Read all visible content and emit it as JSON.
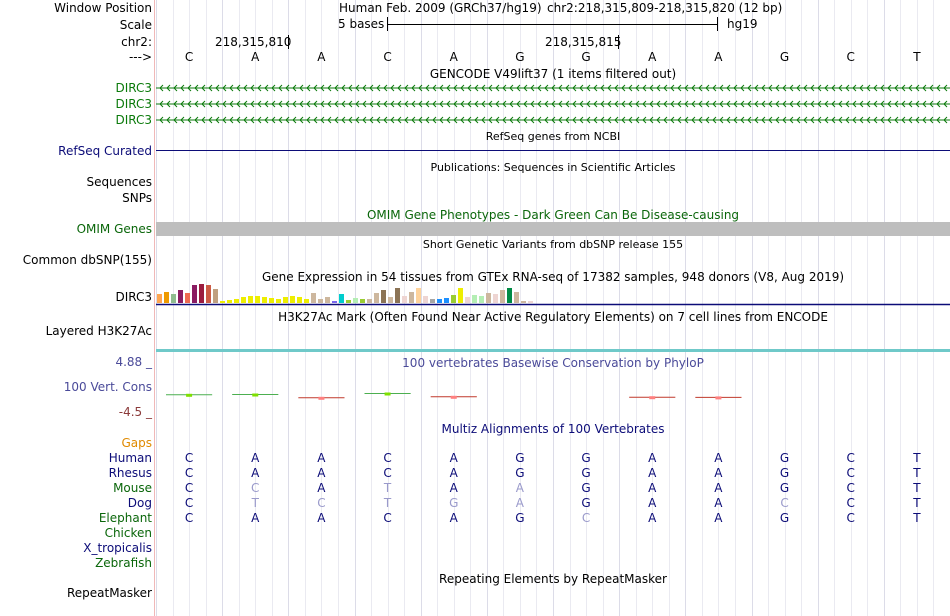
{
  "colors": {
    "gencode": "#0b7a0b",
    "refseq": "#0c0c78",
    "omim_label": "#0a660a",
    "omim_bar": "#bebebe",
    "phylop": "#4a4a99",
    "h3k27ac": "#6fc9c9",
    "gaps": "#e08a00",
    "guide": "#dcdce8"
  },
  "position": {
    "window_label": "Window Position",
    "assembly": "Human Feb. 2009 (GRCh37/hg19)",
    "range": "chr2:218,315,809-218,315,820 (12 bp)"
  },
  "scale": {
    "label": "Scale",
    "text": "5 bases",
    "db": "hg19"
  },
  "ruler": {
    "label": "chr2:",
    "tick1": "218,315,810",
    "tick2": "218,315,815"
  },
  "strand": {
    "label": "--->",
    "bases": [
      "C",
      "A",
      "A",
      "C",
      "A",
      "G",
      "G",
      "A",
      "A",
      "G",
      "C",
      "T"
    ]
  },
  "gencode": {
    "title": "GENCODE V49lift37 (1 items filtered out)",
    "rows": [
      "DIRC3",
      "DIRC3",
      "DIRC3"
    ]
  },
  "refseq": {
    "title": "RefSeq genes from NCBI",
    "label": "RefSeq Curated"
  },
  "publications": {
    "title": "Publications: Sequences in Scientific Articles",
    "labels": [
      "Sequences",
      "SNPs"
    ]
  },
  "omim": {
    "title": "OMIM Gene Phenotypes - Dark Green Can Be Disease-causing",
    "label": "OMIM Genes"
  },
  "dbsnp": {
    "title": "Short Genetic Variants from dbSNP release 155",
    "label": "Common dbSNP(155)"
  },
  "gtex": {
    "title": "Gene Expression in 54 tissues from GTEx RNA-seq of 17382 samples, 948 donors (V8, Aug 2019)",
    "label": "DIRC3",
    "bars": [
      {
        "v": 0.45,
        "c": "#ffa54f"
      },
      {
        "v": 0.55,
        "c": "#ee9a00"
      },
      {
        "v": 0.45,
        "c": "#8fbc8f"
      },
      {
        "v": 0.65,
        "c": "#8b1c62"
      },
      {
        "v": 0.5,
        "c": "#ee6a50"
      },
      {
        "v": 0.9,
        "c": "#8b1c62"
      },
      {
        "v": 0.95,
        "c": "#9c1c3f"
      },
      {
        "v": 0.9,
        "c": "#cd5b45"
      },
      {
        "v": 0.7,
        "c": "#c0a080"
      },
      {
        "v": 0.12,
        "c": "#eeee00"
      },
      {
        "v": 0.15,
        "c": "#eeee00"
      },
      {
        "v": 0.2,
        "c": "#eeee00"
      },
      {
        "v": 0.3,
        "c": "#eeee00"
      },
      {
        "v": 0.35,
        "c": "#eeee00"
      },
      {
        "v": 0.35,
        "c": "#eeee00"
      },
      {
        "v": 0.3,
        "c": "#eeee00"
      },
      {
        "v": 0.25,
        "c": "#eeee00"
      },
      {
        "v": 0.2,
        "c": "#eeee00"
      },
      {
        "v": 0.3,
        "c": "#eeee00"
      },
      {
        "v": 0.35,
        "c": "#eeee00"
      },
      {
        "v": 0.28,
        "c": "#eeee00"
      },
      {
        "v": 0.2,
        "c": "#eeee00"
      },
      {
        "v": 0.5,
        "c": "#cdb79e"
      },
      {
        "v": 0.2,
        "c": "#cdb79e"
      },
      {
        "v": 0.3,
        "c": "#cdb79e"
      },
      {
        "v": 0.12,
        "c": "#7a67ee"
      },
      {
        "v": 0.45,
        "c": "#00cdcd"
      },
      {
        "v": 0.15,
        "c": "#9acd32"
      },
      {
        "v": 0.25,
        "c": "#b4eeb4"
      },
      {
        "v": 0.18,
        "c": "#9acd32"
      },
      {
        "v": 0.2,
        "c": "#cdb79e"
      },
      {
        "v": 0.5,
        "c": "#cdb79e"
      },
      {
        "v": 0.65,
        "c": "#8b7355"
      },
      {
        "v": 0.3,
        "c": "#cdb79e"
      },
      {
        "v": 0.75,
        "c": "#8b7355"
      },
      {
        "v": 0.35,
        "c": "#eed5d2"
      },
      {
        "v": 0.55,
        "c": "#cdb79e"
      },
      {
        "v": 0.75,
        "c": "#ffd39b"
      },
      {
        "v": 0.35,
        "c": "#eed5d2"
      },
      {
        "v": 0.18,
        "c": "#a6a6a6"
      },
      {
        "v": 0.2,
        "c": "#1e90ff"
      },
      {
        "v": 0.25,
        "c": "#1e90ff"
      },
      {
        "v": 0.4,
        "c": "#9acd32"
      },
      {
        "v": 0.75,
        "c": "#eeee00"
      },
      {
        "v": 0.3,
        "c": "#eed5d2"
      },
      {
        "v": 0.4,
        "c": "#b4eeb4"
      },
      {
        "v": 0.35,
        "c": "#b4eeb4"
      },
      {
        "v": 0.5,
        "c": "#cdb79e"
      },
      {
        "v": 0.45,
        "c": "#eed5d2"
      },
      {
        "v": 0.65,
        "c": "#cdb79e"
      },
      {
        "v": 0.75,
        "c": "#008b45"
      },
      {
        "v": 0.55,
        "c": "#cdb79e"
      },
      {
        "v": 0.12,
        "c": "#cdb79e"
      },
      {
        "v": 0.12,
        "c": "#eed5d2"
      }
    ]
  },
  "h3k27ac": {
    "title": "H3K27Ac Mark (Often Found Near Active Regulatory Elements) on 7 cell lines from ENCODE",
    "label": "Layered H3K27Ac"
  },
  "phylop": {
    "title": "100 vertebrates Basewise Conservation by PhyloP",
    "label": "100 Vert. Cons",
    "ymax": "4.88 _",
    "ymin": "-4.5 _",
    "values": [
      0.12,
      0.15,
      -0.18,
      0.25,
      -0.08,
      0,
      0,
      -0.12,
      -0.14,
      0,
      0,
      0
    ]
  },
  "multiz": {
    "title": "Multiz Alignments of 100 Vertebrates",
    "gaps_label": "Gaps",
    "species": [
      {
        "name": "Human",
        "color": "#0c0c78",
        "bases": [
          "C",
          "A",
          "A",
          "C",
          "A",
          "G",
          "G",
          "A",
          "A",
          "G",
          "C",
          "T"
        ],
        "dim": []
      },
      {
        "name": "Rhesus",
        "color": "#0c0c78",
        "bases": [
          "C",
          "A",
          "A",
          "C",
          "A",
          "G",
          "G",
          "A",
          "A",
          "G",
          "C",
          "T"
        ],
        "dim": []
      },
      {
        "name": "Mouse",
        "color": "#0a660a",
        "bases": [
          "C",
          "C",
          "A",
          "T",
          "A",
          "A",
          "G",
          "A",
          "A",
          "G",
          "C",
          "T"
        ],
        "dim": [
          1,
          3,
          5
        ]
      },
      {
        "name": "Dog",
        "color": "#0c0c78",
        "bases": [
          "C",
          "T",
          "C",
          "T",
          "G",
          "A",
          "G",
          "A",
          "A",
          "C",
          "C",
          "T"
        ],
        "dim": [
          1,
          2,
          3,
          4,
          5,
          9
        ]
      },
      {
        "name": "Elephant",
        "color": "#0a660a",
        "bases": [
          "C",
          "A",
          "A",
          "C",
          "A",
          "G",
          "C",
          "A",
          "A",
          "G",
          "C",
          "T"
        ],
        "dim": [
          6
        ]
      },
      {
        "name": "Chicken",
        "color": "#0a660a",
        "bases": [],
        "dim": []
      },
      {
        "name": "X_tropicalis",
        "color": "#0c0c78",
        "bases": [],
        "dim": []
      },
      {
        "name": "Zebrafish",
        "color": "#0a660a",
        "bases": [],
        "dim": []
      }
    ]
  },
  "repeatmasker": {
    "title": "Repeating Elements by RepeatMasker",
    "label": "RepeatMasker"
  }
}
